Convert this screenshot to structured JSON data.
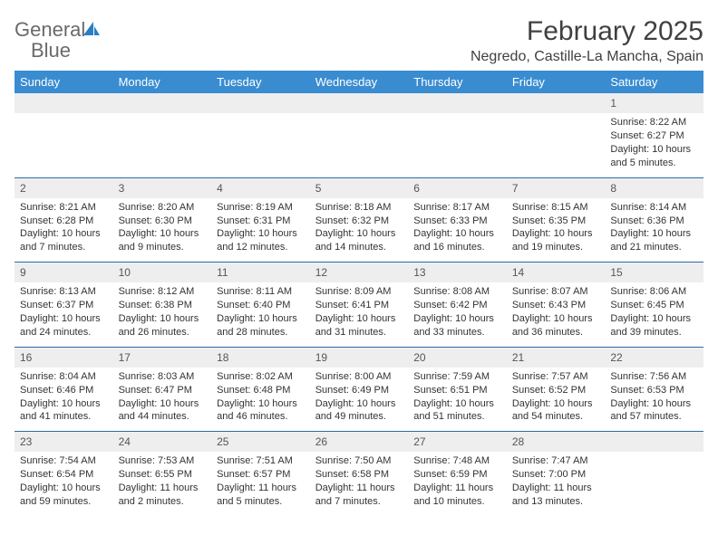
{
  "brand": {
    "name1": "General",
    "name2": "Blue"
  },
  "title": "February 2025",
  "location": "Negredo, Castille-La Mancha, Spain",
  "colors": {
    "header_bg": "#3a8cd1",
    "header_text": "#ffffff",
    "row_divider": "#2d6ba8",
    "daynum_bg": "#eeeeee",
    "body_text": "#333333",
    "brand_grey": "#6a6a6a",
    "brand_blue": "#2a7ec5"
  },
  "typography": {
    "title_fontsize": 30,
    "location_fontsize": 16,
    "header_fontsize": 13,
    "daynum_fontsize": 12,
    "cell_fontsize": 11
  },
  "days": [
    "Sunday",
    "Monday",
    "Tuesday",
    "Wednesday",
    "Thursday",
    "Friday",
    "Saturday"
  ],
  "weeks": [
    {
      "nums": [
        "",
        "",
        "",
        "",
        "",
        "",
        "1"
      ],
      "cells": [
        "",
        "",
        "",
        "",
        "",
        "",
        "Sunrise: 8:22 AM\nSunset: 6:27 PM\nDaylight: 10 hours and 5 minutes."
      ]
    },
    {
      "nums": [
        "2",
        "3",
        "4",
        "5",
        "6",
        "7",
        "8"
      ],
      "cells": [
        "Sunrise: 8:21 AM\nSunset: 6:28 PM\nDaylight: 10 hours and 7 minutes.",
        "Sunrise: 8:20 AM\nSunset: 6:30 PM\nDaylight: 10 hours and 9 minutes.",
        "Sunrise: 8:19 AM\nSunset: 6:31 PM\nDaylight: 10 hours and 12 minutes.",
        "Sunrise: 8:18 AM\nSunset: 6:32 PM\nDaylight: 10 hours and 14 minutes.",
        "Sunrise: 8:17 AM\nSunset: 6:33 PM\nDaylight: 10 hours and 16 minutes.",
        "Sunrise: 8:15 AM\nSunset: 6:35 PM\nDaylight: 10 hours and 19 minutes.",
        "Sunrise: 8:14 AM\nSunset: 6:36 PM\nDaylight: 10 hours and 21 minutes."
      ]
    },
    {
      "nums": [
        "9",
        "10",
        "11",
        "12",
        "13",
        "14",
        "15"
      ],
      "cells": [
        "Sunrise: 8:13 AM\nSunset: 6:37 PM\nDaylight: 10 hours and 24 minutes.",
        "Sunrise: 8:12 AM\nSunset: 6:38 PM\nDaylight: 10 hours and 26 minutes.",
        "Sunrise: 8:11 AM\nSunset: 6:40 PM\nDaylight: 10 hours and 28 minutes.",
        "Sunrise: 8:09 AM\nSunset: 6:41 PM\nDaylight: 10 hours and 31 minutes.",
        "Sunrise: 8:08 AM\nSunset: 6:42 PM\nDaylight: 10 hours and 33 minutes.",
        "Sunrise: 8:07 AM\nSunset: 6:43 PM\nDaylight: 10 hours and 36 minutes.",
        "Sunrise: 8:06 AM\nSunset: 6:45 PM\nDaylight: 10 hours and 39 minutes."
      ]
    },
    {
      "nums": [
        "16",
        "17",
        "18",
        "19",
        "20",
        "21",
        "22"
      ],
      "cells": [
        "Sunrise: 8:04 AM\nSunset: 6:46 PM\nDaylight: 10 hours and 41 minutes.",
        "Sunrise: 8:03 AM\nSunset: 6:47 PM\nDaylight: 10 hours and 44 minutes.",
        "Sunrise: 8:02 AM\nSunset: 6:48 PM\nDaylight: 10 hours and 46 minutes.",
        "Sunrise: 8:00 AM\nSunset: 6:49 PM\nDaylight: 10 hours and 49 minutes.",
        "Sunrise: 7:59 AM\nSunset: 6:51 PM\nDaylight: 10 hours and 51 minutes.",
        "Sunrise: 7:57 AM\nSunset: 6:52 PM\nDaylight: 10 hours and 54 minutes.",
        "Sunrise: 7:56 AM\nSunset: 6:53 PM\nDaylight: 10 hours and 57 minutes."
      ]
    },
    {
      "nums": [
        "23",
        "24",
        "25",
        "26",
        "27",
        "28",
        ""
      ],
      "cells": [
        "Sunrise: 7:54 AM\nSunset: 6:54 PM\nDaylight: 10 hours and 59 minutes.",
        "Sunrise: 7:53 AM\nSunset: 6:55 PM\nDaylight: 11 hours and 2 minutes.",
        "Sunrise: 7:51 AM\nSunset: 6:57 PM\nDaylight: 11 hours and 5 minutes.",
        "Sunrise: 7:50 AM\nSunset: 6:58 PM\nDaylight: 11 hours and 7 minutes.",
        "Sunrise: 7:48 AM\nSunset: 6:59 PM\nDaylight: 11 hours and 10 minutes.",
        "Sunrise: 7:47 AM\nSunset: 7:00 PM\nDaylight: 11 hours and 13 minutes.",
        ""
      ]
    }
  ]
}
